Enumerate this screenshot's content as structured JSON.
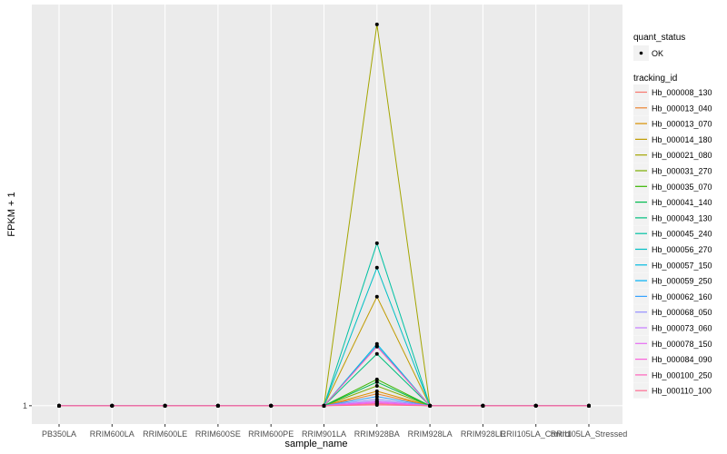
{
  "chart_data": {
    "type": "line",
    "title": "",
    "xlabel": "sample_name",
    "ylabel": "FPKM + 1",
    "y_ticks": [
      "1"
    ],
    "ylim": [
      -3.8,
      106.2
    ],
    "grid": true,
    "legend_position": "right",
    "categories": [
      "PB350LA",
      "RRIM600LA",
      "RRIM600LE",
      "RRIM600SE",
      "RRIM600PE",
      "RRIM901LA",
      "RRIM928BA",
      "RRIM928LA",
      "RRIM928LE",
      "RRII105LA_Control",
      "RRII105LA_Stressed"
    ],
    "point_legend": {
      "title": "quant_status",
      "label": "OK"
    },
    "line_legend_title": "tracking_id",
    "series": [
      {
        "name": "Hb_000008_130",
        "color": "#F8766D",
        "peak": 1.5
      },
      {
        "name": "Hb_000013_040",
        "color": "#EA8331",
        "peak": 4.1
      },
      {
        "name": "Hb_000013_070",
        "color": "#D89000",
        "peak": 4.8
      },
      {
        "name": "Hb_000014_180",
        "color": "#C09B00",
        "peak": 29.6
      },
      {
        "name": "Hb_000021_080",
        "color": "#A3A500",
        "peak": 101
      },
      {
        "name": "Hb_000031_270",
        "color": "#7CAE00",
        "peak": 6.2
      },
      {
        "name": "Hb_000035_070",
        "color": "#39B600",
        "peak": 7.9
      },
      {
        "name": "Hb_000041_140",
        "color": "#00BB4E",
        "peak": 7.2
      },
      {
        "name": "Hb_000043_130",
        "color": "#00BF7D",
        "peak": 14.6
      },
      {
        "name": "Hb_000045_240",
        "color": "#00C1A3",
        "peak": 43.6
      },
      {
        "name": "Hb_000056_270",
        "color": "#00BFC4",
        "peak": 37.2
      },
      {
        "name": "Hb_000057_150",
        "color": "#00BAE0",
        "peak": 17.2
      },
      {
        "name": "Hb_000059_250",
        "color": "#00B0F6",
        "peak": 16.7
      },
      {
        "name": "Hb_000062_160",
        "color": "#35A2FF",
        "peak": 3.4
      },
      {
        "name": "Hb_000068_050",
        "color": "#9590FF",
        "peak": 2.7
      },
      {
        "name": "Hb_000073_060",
        "color": "#C77CFF",
        "peak": 2.2
      },
      {
        "name": "Hb_000078_150",
        "color": "#E76BF3",
        "peak": 2.0
      },
      {
        "name": "Hb_000084_090",
        "color": "#FA62DB",
        "peak": 1.7
      },
      {
        "name": "Hb_000100_250",
        "color": "#FF62BC",
        "peak": 16.5
      },
      {
        "name": "Hb_000110_100",
        "color": "#FF6C91",
        "peak": 1.2
      }
    ],
    "peak_category": "RRIM928BA",
    "baseline_value": 1
  }
}
